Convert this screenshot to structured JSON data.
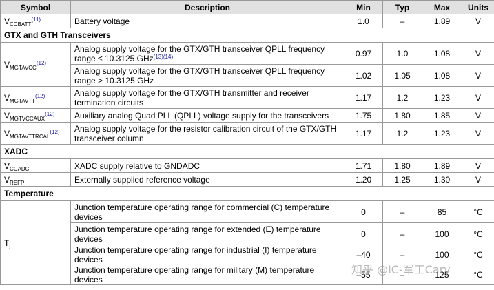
{
  "headers": {
    "symbol": "Symbol",
    "description": "Description",
    "min": "Min",
    "typ": "Typ",
    "max": "Max",
    "units": "Units"
  },
  "rows": {
    "vccbatt": {
      "sym_main": "V",
      "sym_sub": "CCBATT",
      "sym_ref": "(11)",
      "desc": "Battery voltage",
      "min": "1.0",
      "typ": "–",
      "max": "1.89",
      "unit": "V"
    },
    "sec_gtx": "GTX and GTH Transceivers",
    "mgtavcc_sym": {
      "main": "V",
      "sub": "MGTAVCC",
      "ref": "(12)"
    },
    "mgtavcc_a": {
      "desc": "Analog supply voltage for the GTX/GTH transceiver QPLL frequency range ≤ 10.3125 GHz",
      "ref": "(13)(14)",
      "min": "0.97",
      "typ": "1.0",
      "max": "1.08",
      "unit": "V"
    },
    "mgtavcc_b": {
      "desc": "Analog supply voltage for the GTX/GTH transceiver QPLL frequency range > 10.3125 GHz",
      "min": "1.02",
      "typ": "1.05",
      "max": "1.08",
      "unit": "V"
    },
    "mgtavtt": {
      "sym_main": "V",
      "sym_sub": "MGTAVTT",
      "sym_ref": "(12)",
      "desc": "Analog supply voltage for the GTX/GTH transmitter and receiver termination circuits",
      "min": "1.17",
      "typ": "1.2",
      "max": "1.23",
      "unit": "V"
    },
    "mgtvccaux": {
      "sym_main": "V",
      "sym_sub": "MGTVCCAUX",
      "sym_ref": "(12)",
      "desc": "Auxiliary analog Quad PLL (QPLL) voltage supply for the transceivers",
      "min": "1.75",
      "typ": "1.80",
      "max": "1.85",
      "unit": "V"
    },
    "mgtavttrcal": {
      "sym_main": "V",
      "sym_sub": "MGTAVTTRCAL",
      "sym_ref": "(12)",
      "desc": "Analog supply voltage for the resistor calibration circuit of the GTX/GTH transceiver column",
      "min": "1.17",
      "typ": "1.2",
      "max": "1.23",
      "unit": "V"
    },
    "sec_xadc": "XADC",
    "ccadc": {
      "sym_main": "V",
      "sym_sub": "CCADC",
      "desc": "XADC supply relative to GNDADC",
      "min": "1.71",
      "typ": "1.80",
      "max": "1.89",
      "unit": "V"
    },
    "refp": {
      "sym_main": "V",
      "sym_sub": "REFP",
      "desc": "Externally supplied reference voltage",
      "min": "1.20",
      "typ": "1.25",
      "max": "1.30",
      "unit": "V"
    },
    "sec_temp": "Temperature",
    "tj_sym": {
      "main": "T",
      "sub": "j"
    },
    "tj_c": {
      "desc": "Junction temperature operating range for commercial (C) temperature devices",
      "min": "0",
      "typ": "–",
      "max": "85",
      "unit": "°C"
    },
    "tj_e": {
      "desc": "Junction temperature operating range for extended (E) temperature devices",
      "min": "0",
      "typ": "–",
      "max": "100",
      "unit": "°C"
    },
    "tj_i": {
      "desc": "Junction temperature operating range for industrial (I) temperature devices",
      "min": "–40",
      "typ": "–",
      "max": "100",
      "unit": "°C"
    },
    "tj_m": {
      "desc": "Junction temperature operating range for military (M) temperature devices",
      "min": "–55",
      "typ": "–",
      "max": "125",
      "unit": "°C"
    }
  },
  "watermark": "知乎 @IC-军工Cary"
}
